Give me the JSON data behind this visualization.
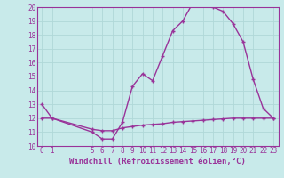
{
  "title": "",
  "xlabel": "Windchill (Refroidissement éolien,°C)",
  "background_color": "#c8eaea",
  "grid_color": "#b0d8d8",
  "line_color": "#993399",
  "x_main": [
    0,
    1,
    5,
    6,
    7,
    8,
    9,
    10,
    11,
    12,
    13,
    14,
    15,
    16,
    17,
    18,
    19,
    20,
    21,
    22,
    23
  ],
  "y_main": [
    13,
    12,
    11,
    10.5,
    10.5,
    11.7,
    14.3,
    15.2,
    14.7,
    16.5,
    18.3,
    19.0,
    20.3,
    20.1,
    20.0,
    19.7,
    18.8,
    17.5,
    14.8,
    12.7,
    12.0
  ],
  "x_flat": [
    0,
    1,
    5,
    6,
    7,
    8,
    9,
    10,
    11,
    12,
    13,
    14,
    15,
    16,
    17,
    18,
    19,
    20,
    21,
    22,
    23
  ],
  "y_flat": [
    12,
    12,
    11.2,
    11.1,
    11.1,
    11.3,
    11.4,
    11.5,
    11.55,
    11.6,
    11.7,
    11.75,
    11.8,
    11.85,
    11.9,
    11.95,
    12.0,
    12.0,
    12.0,
    12.0,
    12.0
  ],
  "ylim": [
    10,
    20
  ],
  "yticks": [
    10,
    11,
    12,
    13,
    14,
    15,
    16,
    17,
    18,
    19,
    20
  ],
  "xticks": [
    0,
    1,
    5,
    6,
    7,
    8,
    9,
    10,
    11,
    12,
    13,
    14,
    15,
    16,
    17,
    18,
    19,
    20,
    21,
    22,
    23
  ],
  "tick_fontsize": 5.5,
  "xlabel_fontsize": 6.5
}
